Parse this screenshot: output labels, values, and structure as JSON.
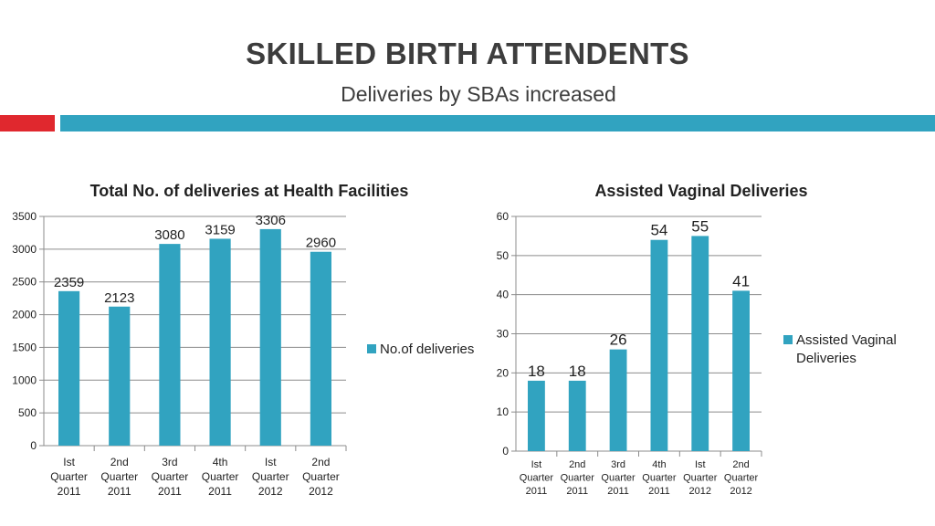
{
  "slide": {
    "title": "SKILLED BIRTH ATTENDENTS",
    "subtitle": "Deliveries by SBAs increased",
    "accent_colors": {
      "red": "#e0282e",
      "blue": "#31a3c0"
    }
  },
  "chart_data": [
    {
      "type": "bar",
      "title": "Total No. of deliveries at Health Facilities",
      "categories": [
        [
          "Ist",
          "Quarter",
          "2011"
        ],
        [
          "2nd",
          "Quarter",
          "2011"
        ],
        [
          "3rd",
          "Quarter",
          "2011"
        ],
        [
          "4th",
          "Quarter",
          "2011"
        ],
        [
          "Ist",
          "Quarter",
          "2012"
        ],
        [
          "2nd",
          "Quarter",
          "2012"
        ]
      ],
      "series": [
        {
          "name": "No.of deliveries",
          "values": [
            2359,
            2123,
            3080,
            3159,
            3306,
            2960
          ],
          "color": "#31a3c0"
        }
      ],
      "ylim": [
        0,
        3500
      ],
      "yticks": [
        0,
        500,
        1000,
        1500,
        2000,
        2500,
        3000,
        3500
      ],
      "xlabel": "",
      "ylabel": "",
      "grid": true,
      "legend_position": "right"
    },
    {
      "type": "bar",
      "title": "Assisted Vaginal Deliveries",
      "categories": [
        [
          "Ist",
          "Quarter",
          "2011"
        ],
        [
          "2nd",
          "Quarter",
          "2011"
        ],
        [
          "3rd",
          "Quarter",
          "2011"
        ],
        [
          "4th",
          "Quarter",
          "2011"
        ],
        [
          "Ist",
          "Quarter",
          "2012"
        ],
        [
          "2nd",
          "Quarter",
          "2012"
        ]
      ],
      "series": [
        {
          "name": "Assisted Vaginal Deliveries",
          "legend_lines": [
            "Assisted Vaginal",
            "Deliveries"
          ],
          "values": [
            18,
            18,
            26,
            54,
            55,
            41
          ],
          "color": "#31a3c0"
        }
      ],
      "ylim": [
        0,
        60
      ],
      "yticks": [
        0,
        10,
        20,
        30,
        40,
        50,
        60
      ],
      "xlabel": "",
      "ylabel": "",
      "grid": true,
      "legend_position": "right"
    }
  ]
}
